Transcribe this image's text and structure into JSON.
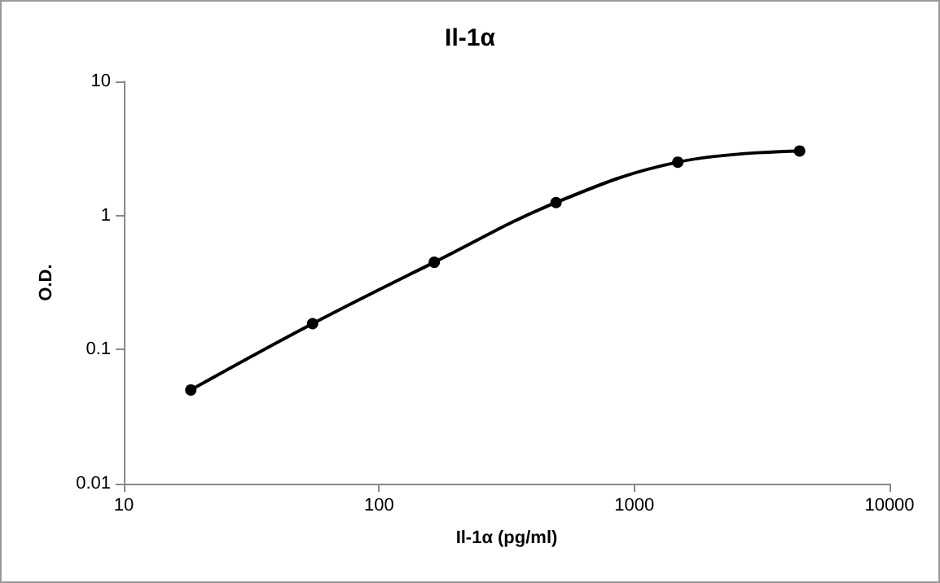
{
  "chart_data": {
    "type": "line",
    "title": "Il-1α",
    "xlabel": "Il-1α (pg/ml)",
    "ylabel": "O.D.",
    "x": [
      18.3,
      54.9,
      164.6,
      493.8,
      1481,
      4444
    ],
    "series": [
      {
        "color": "#000000",
        "values": [
          0.05,
          0.156,
          0.448,
          1.25,
          2.5,
          3.03
        ]
      }
    ],
    "xlim": [
      10,
      10000
    ],
    "ylim": [
      0.01,
      10
    ],
    "xticks": [
      10,
      100,
      1000,
      10000
    ],
    "yticks": [
      0.01,
      0.1,
      1,
      10
    ],
    "log": "xy",
    "grid": false,
    "marker": "circle",
    "line_style": "solid"
  }
}
